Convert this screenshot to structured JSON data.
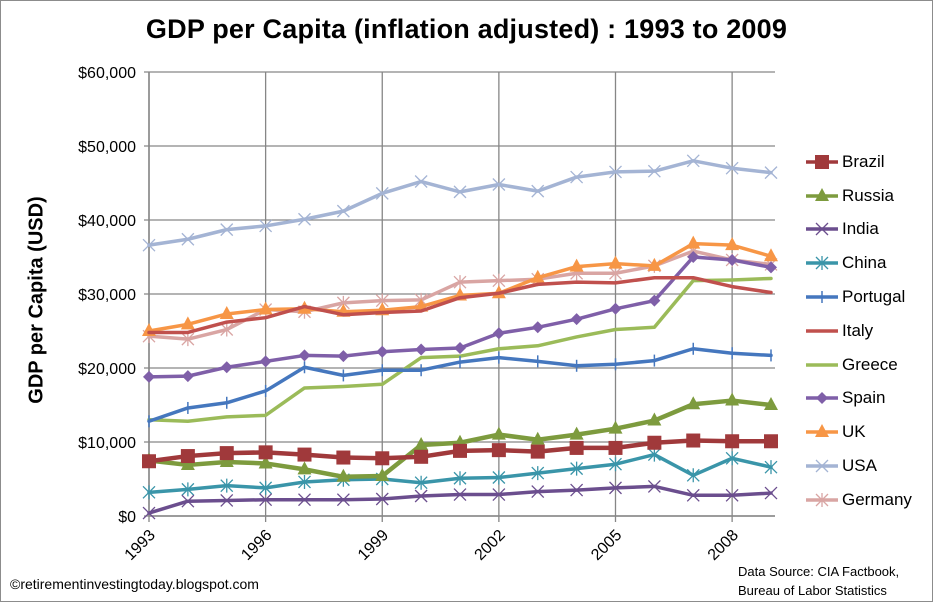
{
  "chart_data": {
    "type": "line",
    "title": "GDP per Capita (inflation adjusted) : 1993 to 2009",
    "xlabel": "",
    "ylabel": "GDP per Capita (USD)",
    "x": [
      1993,
      1994,
      1995,
      1996,
      1997,
      1998,
      1999,
      2000,
      2001,
      2002,
      2003,
      2004,
      2005,
      2006,
      2007,
      2008,
      2009
    ],
    "x_tick_labels": [
      "1993",
      "1996",
      "1999",
      "2002",
      "2005",
      "2008"
    ],
    "x_tick_values": [
      1993,
      1996,
      1999,
      2002,
      2005,
      2008
    ],
    "ylim": [
      0,
      60000
    ],
    "y_ticks": [
      0,
      10000,
      20000,
      30000,
      40000,
      50000,
      60000
    ],
    "y_tick_labels": [
      "$0",
      "$10,000",
      "$20,000",
      "$30,000",
      "$40,000",
      "$50,000",
      "$60,000"
    ],
    "grid": true,
    "legend_position": "right",
    "series": [
      {
        "name": "Brazil",
        "color": "#A0393B",
        "marker": "square",
        "values": [
          7400,
          8100,
          8500,
          8600,
          8300,
          7900,
          7800,
          8000,
          8800,
          8900,
          8700,
          9200,
          9200,
          9900,
          10200,
          10100,
          10100
        ]
      },
      {
        "name": "Russia",
        "color": "#7D9B3E",
        "marker": "triangle",
        "values": [
          7500,
          6900,
          7300,
          7100,
          6300,
          5300,
          5400,
          9600,
          9900,
          11000,
          10300,
          11000,
          11800,
          12900,
          15100,
          15600,
          15000
        ]
      },
      {
        "name": "India",
        "color": "#6B4E8E",
        "marker": "x",
        "values": [
          400,
          2000,
          2100,
          2200,
          2200,
          2200,
          2300,
          2700,
          2900,
          2900,
          3300,
          3500,
          3800,
          4000,
          2800,
          2800,
          3100
        ]
      },
      {
        "name": "China",
        "color": "#3A95A9",
        "marker": "asterisk",
        "values": [
          3200,
          3600,
          4100,
          3800,
          4600,
          4900,
          5000,
          4500,
          5100,
          5200,
          5800,
          6400,
          7000,
          8300,
          5500,
          7800,
          6600
        ]
      },
      {
        "name": "Portugal",
        "color": "#4577BE",
        "marker": "plus",
        "values": [
          12800,
          14600,
          15300,
          16900,
          20100,
          19000,
          19700,
          19700,
          20800,
          21400,
          20900,
          20300,
          20500,
          21000,
          22600,
          22000,
          21700
        ]
      },
      {
        "name": "Italy",
        "color": "#C0504D",
        "marker": "none",
        "values": [
          24800,
          24800,
          26200,
          26800,
          28300,
          27200,
          27500,
          27700,
          29500,
          30100,
          31300,
          31600,
          31500,
          32200,
          32200,
          31000,
          30200
        ]
      },
      {
        "name": "Greece",
        "color": "#9BBB59",
        "marker": "none",
        "values": [
          13000,
          12800,
          13400,
          13600,
          17300,
          17500,
          17800,
          21400,
          21600,
          22600,
          23000,
          24200,
          25200,
          25500,
          31800,
          31900,
          32100
        ]
      },
      {
        "name": "Spain",
        "color": "#7F5FA8",
        "marker": "diamond",
        "values": [
          18800,
          18900,
          20100,
          20900,
          21700,
          21600,
          22200,
          22500,
          22700,
          24700,
          25500,
          26600,
          28000,
          29100,
          35000,
          34600,
          33600
        ]
      },
      {
        "name": "UK",
        "color": "#F79646",
        "marker": "triangle",
        "values": [
          25000,
          25900,
          27300,
          27900,
          28000,
          27600,
          27800,
          28300,
          29800,
          30100,
          32200,
          33700,
          34100,
          33800,
          36800,
          36600,
          35100
        ]
      },
      {
        "name": "USA",
        "color": "#A4B4D4",
        "marker": "x",
        "values": [
          36600,
          37400,
          38700,
          39200,
          40100,
          41200,
          43600,
          45200,
          43800,
          44800,
          43900,
          45800,
          46500,
          46600,
          48000,
          47000,
          46400
        ]
      },
      {
        "name": "Germany",
        "color": "#D9A5A3",
        "marker": "asterisk",
        "values": [
          24300,
          23900,
          25200,
          27900,
          27600,
          28800,
          29100,
          29200,
          31600,
          31800,
          32000,
          32800,
          32800,
          33800,
          35800,
          34600,
          34000
        ]
      }
    ]
  },
  "footer": {
    "copyright": "©retirementinvestingtoday.blogspot.com",
    "source_line1": "Data Source: CIA Factbook,",
    "source_line2": "Bureau of Labor Statistics"
  }
}
